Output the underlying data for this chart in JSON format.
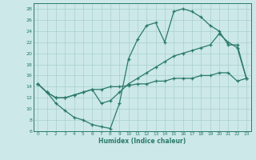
{
  "xlabel": "Humidex (Indice chaleur)",
  "xlim": [
    -0.5,
    23.5
  ],
  "ylim": [
    6,
    29
  ],
  "xticks": [
    0,
    1,
    2,
    3,
    4,
    5,
    6,
    7,
    8,
    9,
    10,
    11,
    12,
    13,
    14,
    15,
    16,
    17,
    18,
    19,
    20,
    21,
    22,
    23
  ],
  "yticks": [
    6,
    8,
    10,
    12,
    14,
    16,
    18,
    20,
    22,
    24,
    26,
    28
  ],
  "color": "#2a7a6a",
  "bg_color": "#cce8e8",
  "grid_color": "#aacfcf",
  "line1_x": [
    0,
    1,
    2,
    3,
    4,
    5,
    6,
    7,
    8,
    9,
    10,
    11,
    12,
    13,
    14,
    15,
    16,
    17,
    18,
    19,
    20,
    21,
    22,
    23
  ],
  "line1_y": [
    14.5,
    13,
    11,
    9.7,
    8.5,
    8.0,
    7.2,
    6.8,
    6.5,
    11.0,
    19.0,
    22.5,
    25.0,
    25.5,
    22.0,
    27.5,
    28.0,
    27.5,
    26.5,
    25.0,
    24.0,
    21.5,
    21.5,
    15.5
  ],
  "line2_x": [
    0,
    1,
    2,
    3,
    4,
    5,
    6,
    7,
    8,
    9,
    10,
    11,
    12,
    13,
    14,
    15,
    16,
    17,
    18,
    19,
    20,
    21,
    22,
    23
  ],
  "line2_y": [
    14.5,
    13,
    12,
    12,
    12.5,
    13,
    13.5,
    11.0,
    11.5,
    13.0,
    14.5,
    15.5,
    16.5,
    17.5,
    18.5,
    19.5,
    20.0,
    20.5,
    21.0,
    21.5,
    23.5,
    22.0,
    21.0,
    15.5
  ],
  "line3_x": [
    0,
    1,
    2,
    3,
    4,
    5,
    6,
    7,
    8,
    9,
    10,
    11,
    12,
    13,
    14,
    15,
    16,
    17,
    18,
    19,
    20,
    21,
    22,
    23
  ],
  "line3_y": [
    14.5,
    13,
    12,
    12,
    12.5,
    13,
    13.5,
    13.5,
    14.0,
    14.0,
    14.2,
    14.5,
    14.5,
    15.0,
    15.0,
    15.5,
    15.5,
    15.5,
    16.0,
    16.0,
    16.5,
    16.5,
    15.0,
    15.5
  ]
}
